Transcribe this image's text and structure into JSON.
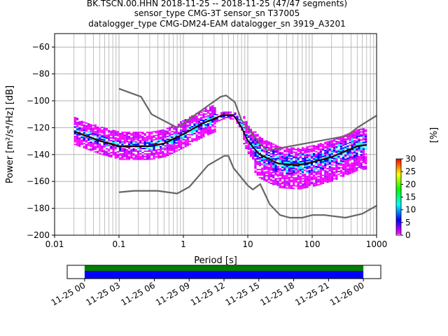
{
  "titles": {
    "line1": "BK.TSCN.00.HHN   2018-11-25 -- 2018-11-25  (47/47 segments)",
    "line2": "sensor_type CMG-3T sensor_sn T37005",
    "line3": "datalogger_type CMG-DM24-EAM datalogger_sn 3919_A3201"
  },
  "chart_data": [
    {
      "type": "heatmap",
      "title": "BK.TSCN.00.HHN   2018-11-25 -- 2018-11-25  (47/47 segments)",
      "xlabel": "Period [s]",
      "ylabel": "Power [m²/s⁴/Hz] [dB]",
      "xscale": "log",
      "xlim": [
        0.01,
        1000
      ],
      "ylim": [
        -200,
        -50
      ],
      "x_ticks": [
        "0.01",
        "0.1",
        "1",
        "10",
        "100",
        "1000"
      ],
      "y_ticks": [
        "−200",
        "−180",
        "−160",
        "−140",
        "−120",
        "−100",
        "−80",
        "−60"
      ],
      "grid": true,
      "colorbar": {
        "label": "[%]",
        "range": [
          0,
          30
        ],
        "ticks": [
          "0",
          "5",
          "10",
          "15",
          "20",
          "25",
          "30"
        ],
        "colors": [
          "#ffffff",
          "#ff00ff",
          "#0000ff",
          "#00ffff",
          "#00ff00",
          "#ffff00",
          "#ff0000"
        ]
      },
      "model_color": "#666666",
      "mode_color": "#000000",
      "mean_color": "#8b0000",
      "new_high_noise_model": [
        [
          0.1,
          -91
        ],
        [
          0.22,
          -97
        ],
        [
          0.32,
          -110
        ],
        [
          0.8,
          -120
        ],
        [
          3.8,
          -97
        ],
        [
          4.6,
          -96
        ],
        [
          6.3,
          -101
        ],
        [
          7.9,
          -114
        ],
        [
          15.4,
          -132
        ],
        [
          20,
          -137
        ],
        [
          354,
          -126
        ],
        [
          500,
          -120
        ],
        [
          1000,
          -111
        ]
      ],
      "new_low_noise_model": [
        [
          0.1,
          -168
        ],
        [
          0.17,
          -167
        ],
        [
          0.4,
          -167
        ],
        [
          0.8,
          -169
        ],
        [
          1.24,
          -164
        ],
        [
          2.4,
          -148
        ],
        [
          4.3,
          -141
        ],
        [
          5,
          -141
        ],
        [
          6,
          -150
        ],
        [
          10,
          -163
        ],
        [
          12,
          -166
        ],
        [
          15.6,
          -162
        ],
        [
          21.9,
          -177
        ],
        [
          31.6,
          -185
        ],
        [
          45,
          -187
        ],
        [
          70,
          -187
        ],
        [
          101,
          -185
        ],
        [
          154,
          -185
        ],
        [
          328,
          -187
        ],
        [
          600,
          -184
        ],
        [
          1000,
          -178
        ]
      ],
      "mode_curve": [
        [
          0.02,
          -123
        ],
        [
          0.05,
          -130
        ],
        [
          0.1,
          -134
        ],
        [
          0.3,
          -134
        ],
        [
          0.5,
          -132
        ],
        [
          1,
          -125
        ],
        [
          2,
          -117
        ],
        [
          4,
          -111
        ],
        [
          6,
          -111
        ],
        [
          8,
          -120
        ],
        [
          10,
          -130
        ],
        [
          15,
          -140
        ],
        [
          30,
          -147
        ],
        [
          60,
          -148
        ],
        [
          100,
          -146
        ],
        [
          200,
          -142
        ],
        [
          500,
          -134
        ],
        [
          700,
          -133
        ]
      ]
    },
    {
      "type": "bar",
      "title": "",
      "orientation": "horizontal",
      "x_ticks": [
        "11-25 00",
        "11-25 03",
        "11-25 06",
        "11-25 09",
        "11-25 12",
        "11-25 15",
        "11-25 18",
        "11-25 21",
        "11-26 00"
      ],
      "xlim_hours": [
        -1.5,
        25.5
      ],
      "series": [
        {
          "start_hour": 0,
          "end_hour": 24,
          "color": "#008000"
        },
        {
          "start_hour": 0,
          "end_hour": 24,
          "color": "#0000ff"
        }
      ]
    }
  ]
}
